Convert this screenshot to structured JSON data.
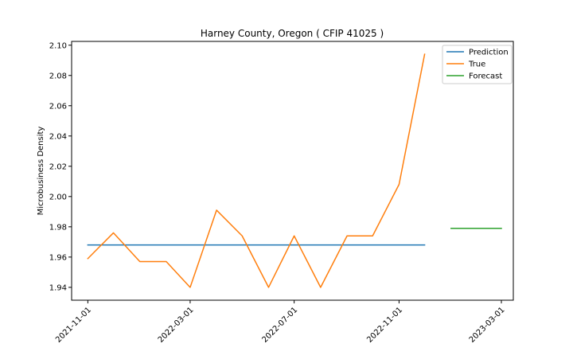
{
  "chart_data": {
    "type": "line",
    "title": "Harney County, Oregon ( CFIP 41025 )",
    "xlabel": "",
    "ylabel": "Microbusiness Density",
    "xlim": [
      "2021-10-13",
      "2023-03-15"
    ],
    "ylim": [
      1.9315,
      2.1025
    ],
    "x_ticks": [
      "2021-11-01",
      "2022-03-01",
      "2022-07-01",
      "2022-11-01",
      "2023-03-01"
    ],
    "y_ticks": [
      1.94,
      1.96,
      1.98,
      2.0,
      2.02,
      2.04,
      2.06,
      2.08,
      2.1
    ],
    "y_tick_labels": [
      "1.94",
      "1.96",
      "1.98",
      "2.00",
      "2.02",
      "2.04",
      "2.06",
      "2.08",
      "2.10"
    ],
    "grid": false,
    "legend_position": "top-right",
    "series": [
      {
        "name": "Prediction",
        "color": "#1f77b4",
        "x": [
          "2021-11-01",
          "2022-12-01"
        ],
        "y": [
          1.968,
          1.968
        ]
      },
      {
        "name": "True",
        "color": "#ff7f0e",
        "x": [
          "2021-11-01",
          "2021-12-01",
          "2022-01-01",
          "2022-02-01",
          "2022-03-01",
          "2022-04-01",
          "2022-05-01",
          "2022-06-01",
          "2022-07-01",
          "2022-08-01",
          "2022-09-01",
          "2022-10-01",
          "2022-11-01",
          "2022-12-01"
        ],
        "y": [
          1.959,
          1.976,
          1.957,
          1.957,
          1.94,
          1.991,
          1.974,
          1.94,
          1.974,
          1.94,
          1.974,
          1.974,
          2.008,
          2.094
        ]
      },
      {
        "name": "Forecast",
        "color": "#2ca02c",
        "x": [
          "2023-01-01",
          "2023-03-01"
        ],
        "y": [
          1.979,
          1.979
        ]
      }
    ]
  }
}
